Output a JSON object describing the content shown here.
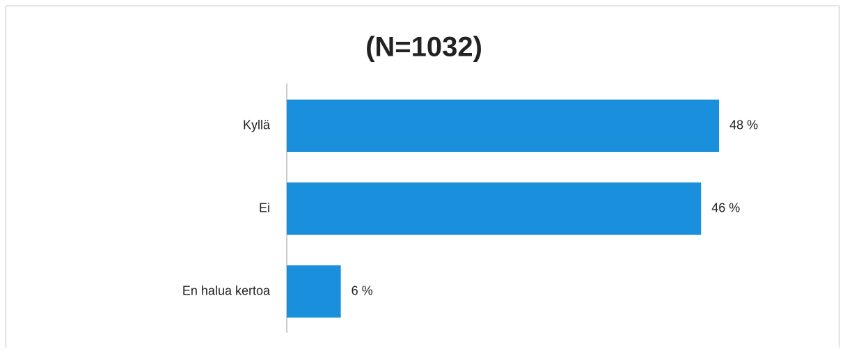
{
  "chart_data": {
    "type": "bar",
    "orientation": "horizontal",
    "title": "(N=1032)",
    "categories": [
      "Kyllä",
      "Ei",
      "En halua kertoa"
    ],
    "values": [
      48,
      46,
      6
    ],
    "value_labels": [
      "48 %",
      "46 %",
      "6 %"
    ],
    "color": "#1a8fdb"
  }
}
